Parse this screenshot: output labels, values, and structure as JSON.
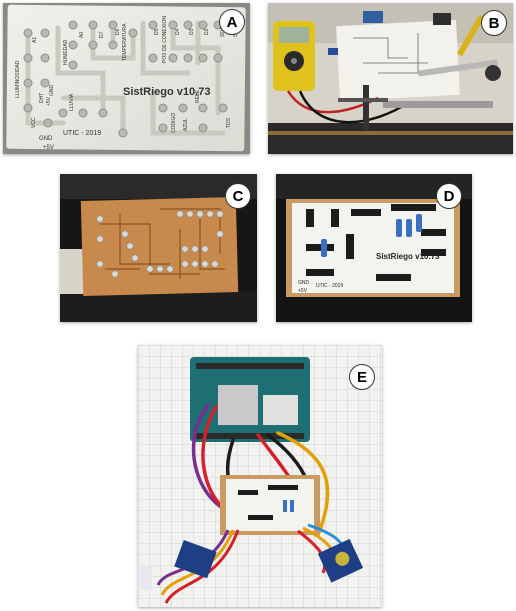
{
  "figure": {
    "panel_labels": [
      "A",
      "B",
      "C",
      "D",
      "E"
    ]
  },
  "panel_a": {
    "board_title": "SistRiego v10.73",
    "board_credit": "UTIC - 2019",
    "board_labels": [
      "LLUMINOSIDAD",
      "HUMEDAD",
      "TEMPERATURA",
      "POS DE CONEXION",
      "A1",
      "A0",
      "D7",
      "D6",
      "D5",
      "D4",
      "D3",
      "D2",
      "SDA",
      "SCL",
      "GND",
      "RELE",
      "VCC",
      "+5V",
      "TDS",
      "LLUVIA",
      "DHT",
      "CODIGO",
      "AZUL",
      "+5V",
      "GND"
    ]
  },
  "panel_b": {
    "scene": "multimeter-test-bench"
  },
  "panel_c": {
    "scene": "soldered-copper-traces"
  },
  "panel_d": {
    "board_title": "SistRiego v10.73",
    "board_credit": "UTIC - 2019",
    "board_labels": [
      "+5V",
      "GND"
    ]
  },
  "panel_e": {
    "scene": "assembled-prototype"
  }
}
